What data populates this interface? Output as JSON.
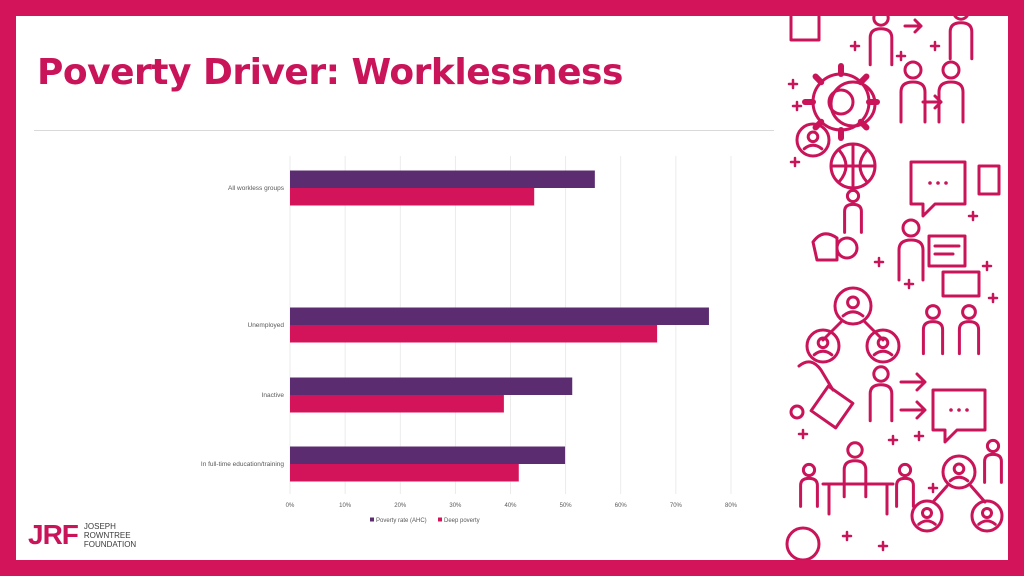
{
  "slide": {
    "title": "Poverty Driver: Worklessness"
  },
  "logo": {
    "mark": "JRF",
    "lines": [
      "JOSEPH",
      "ROWNTREE",
      "FOUNDATION"
    ]
  },
  "decoration": {
    "icons": [
      "people-icon",
      "gear-icon",
      "globe-icon",
      "speech-bubble-icon",
      "presenter-icon",
      "person-network-icon",
      "meeting-icon",
      "fist-icon"
    ],
    "color": "#c9145a"
  },
  "chart_data": {
    "type": "bar",
    "orientation": "horizontal",
    "categories": [
      "All workless groups",
      "",
      "Unemployed",
      "Inactive",
      "In full-time education/training"
    ],
    "series": [
      {
        "name": "Poverty rate (AHC)",
        "color": "#5b2c6f",
        "values": [
          55.3,
          null,
          76.0,
          51.2,
          49.9
        ]
      },
      {
        "name": "Deep poverty",
        "color": "#d4145a",
        "values": [
          44.3,
          null,
          66.6,
          38.8,
          41.5
        ]
      }
    ],
    "xlim": [
      0,
      80
    ],
    "ticks": [
      "0%",
      "10%",
      "20%",
      "30%",
      "40%",
      "50%",
      "60%",
      "70%",
      "80%"
    ],
    "grid": true,
    "legend": "bottom"
  }
}
